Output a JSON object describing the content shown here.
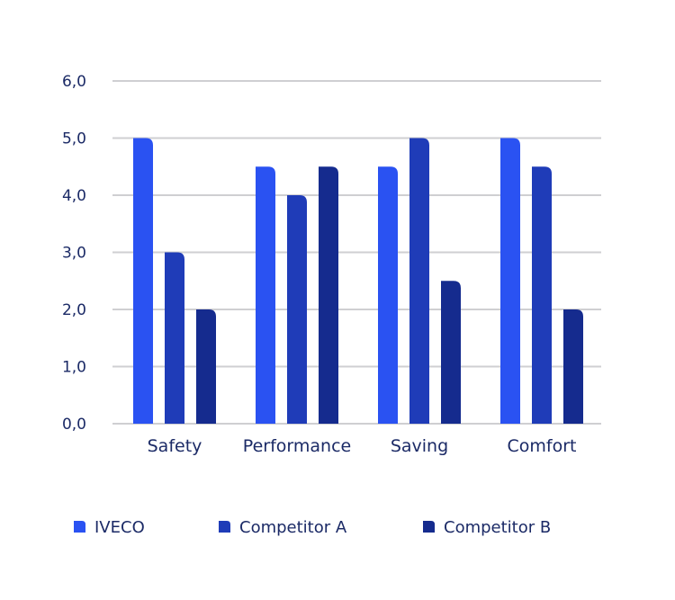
{
  "chart_data": {
    "type": "bar",
    "categories": [
      "Safety",
      "Performance",
      "Saving",
      "Comfort"
    ],
    "series": [
      {
        "name": "IVECO",
        "values": [
          5.0,
          4.5,
          4.5,
          5.0
        ],
        "color": "#2a52f2"
      },
      {
        "name": "Competitor A",
        "values": [
          3.0,
          4.0,
          5.0,
          4.5
        ],
        "color": "#1f3cb8"
      },
      {
        "name": "Competitor B",
        "values": [
          2.0,
          4.5,
          2.5,
          2.0
        ],
        "color": "#152b8e"
      }
    ],
    "ylim": [
      0,
      6
    ],
    "yticks": [
      "0,0",
      "1,0",
      "2,0",
      "3,0",
      "4,0",
      "5,0",
      "6,0"
    ],
    "grid": true,
    "legend": "bottom",
    "title": "",
    "xlabel": "",
    "ylabel": ""
  }
}
